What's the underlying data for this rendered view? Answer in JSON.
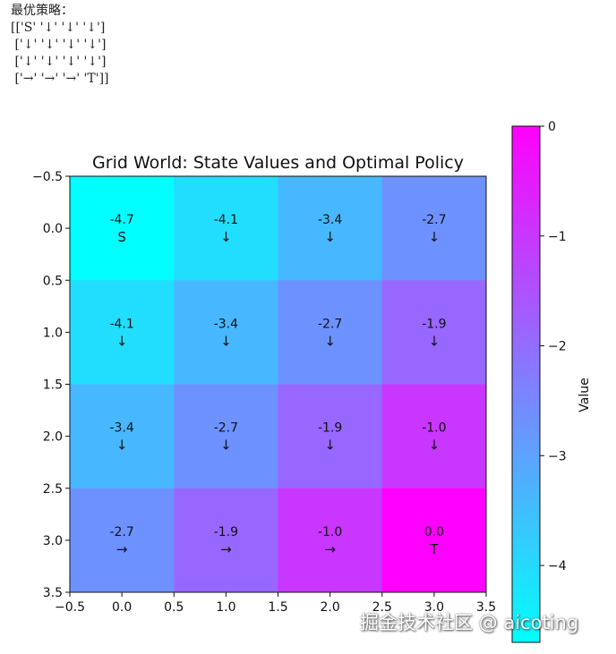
{
  "console": {
    "heading": "最优策略：",
    "policy_lines": [
      "[['S' '↓' '↓' '↓']",
      " ['↓' '↓' '↓' '↓']",
      " ['↓' '↓' '↓' '↓']",
      " ['→' '→' '→' 'T']]"
    ]
  },
  "watermark": "掘金技术社区 @ aicoting",
  "chart_data": {
    "type": "heatmap",
    "title": "Grid World: State Values and Optimal Policy",
    "colormap": "cool",
    "color_low": "#00ffff",
    "color_high": "#ff00ff",
    "vmin": -4.7,
    "vmax": 0,
    "values": [
      [
        -4.7,
        -4.1,
        -3.4,
        -2.7
      ],
      [
        -4.1,
        -3.4,
        -2.7,
        -1.9
      ],
      [
        -3.4,
        -2.7,
        -1.9,
        -1.0
      ],
      [
        -2.7,
        -1.9,
        -1.0,
        0.0
      ]
    ],
    "value_labels": [
      [
        "-4.7",
        "-4.1",
        "-3.4",
        "-2.7"
      ],
      [
        "-4.1",
        "-3.4",
        "-2.7",
        "-1.9"
      ],
      [
        "-3.4",
        "-2.7",
        "-1.9",
        "-1.0"
      ],
      [
        "-2.7",
        "-1.9",
        "-1.0",
        "0.0"
      ]
    ],
    "policy": [
      [
        "S",
        "↓",
        "↓",
        "↓"
      ],
      [
        "↓",
        "↓",
        "↓",
        "↓"
      ],
      [
        "↓",
        "↓",
        "↓",
        "↓"
      ],
      [
        "→",
        "→",
        "→",
        "T"
      ]
    ],
    "xlim": [
      -0.5,
      3.5
    ],
    "ylim": [
      3.5,
      -0.5
    ],
    "x_ticks": [
      "−0.5",
      "0.0",
      "0.5",
      "1.0",
      "1.5",
      "2.0",
      "2.5",
      "3.0",
      "3.5"
    ],
    "y_ticks": [
      "−0.5",
      "0.0",
      "0.5",
      "1.0",
      "1.5",
      "2.0",
      "2.5",
      "3.0",
      "3.5"
    ],
    "colorbar": {
      "label": "Value",
      "ticks": [
        0,
        -1,
        -2,
        -3,
        -4
      ],
      "tick_labels": [
        "0",
        "−1",
        "−2",
        "−3",
        "−4"
      ]
    }
  }
}
